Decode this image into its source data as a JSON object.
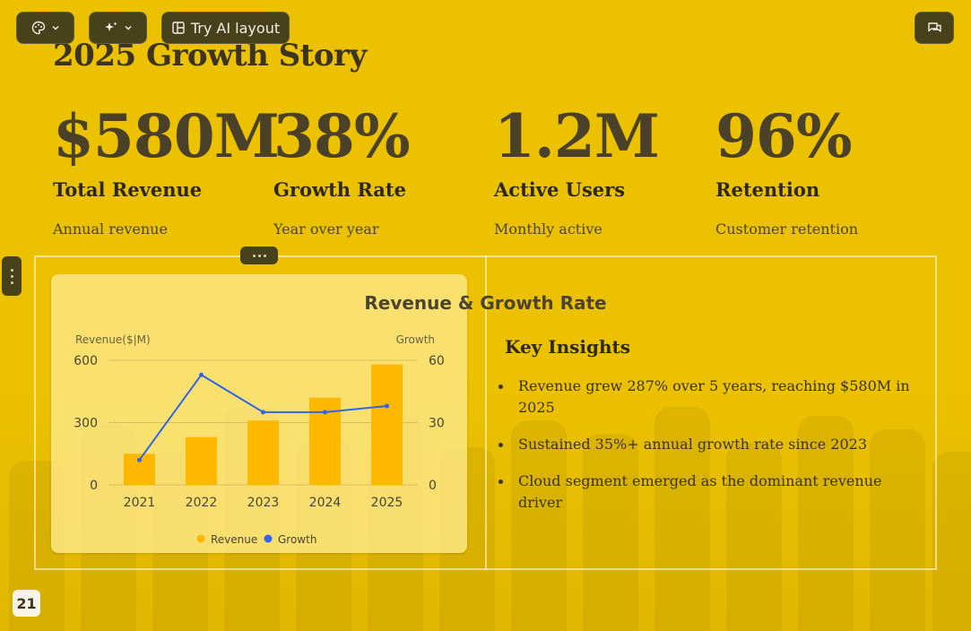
{
  "toolbar": {
    "theme_icon": "palette-icon",
    "ai_icon": "sparkles-icon",
    "ai_layout_label": "Try AI layout",
    "comment_icon": "comment-icon"
  },
  "slide": {
    "title": "2025 Growth Story",
    "stats": [
      {
        "value": "$580M",
        "label": "Total Revenue",
        "sub": "Annual revenue"
      },
      {
        "value": "38%",
        "label": "Growth Rate",
        "sub": "Year over year"
      },
      {
        "value": "1.2M",
        "label": "Active Users",
        "sub": "Monthly active"
      },
      {
        "value": "96%",
        "label": "Retention",
        "sub": "Customer retention"
      }
    ],
    "insights_title": "Key Insights",
    "insights": [
      "Revenue grew 287% over 5 years, reaching $580M in 2025",
      "Sustained 35%+ annual growth rate since 2023",
      "Cloud segment emerged as the dominant revenue driver"
    ],
    "page_number": "21"
  },
  "colors": {
    "background": "#ecc200",
    "bar": "#ffb800",
    "line": "#2f66e8",
    "toolbar": "#47411c"
  },
  "chart_data": {
    "type": "bar",
    "title": "Revenue & Growth Rate",
    "categories": [
      "2021",
      "2022",
      "2023",
      "2024",
      "2025"
    ],
    "ylabel": "Revenue($|M)",
    "y2label": "Growth",
    "ylim": [
      0,
      600
    ],
    "y2lim": [
      0,
      60
    ],
    "yticks": [
      0,
      300,
      600
    ],
    "y2ticks": [
      0,
      30,
      60
    ],
    "grid": true,
    "legend_position": "bottom",
    "series": [
      {
        "name": "Revenue",
        "type": "bar",
        "axis": "left",
        "color": "#ffb800",
        "values": [
          150,
          230,
          310,
          420,
          580
        ]
      },
      {
        "name": "Growth",
        "type": "line",
        "axis": "right",
        "color": "#2f66e8",
        "values": [
          12,
          53,
          35,
          35,
          38
        ]
      }
    ]
  }
}
